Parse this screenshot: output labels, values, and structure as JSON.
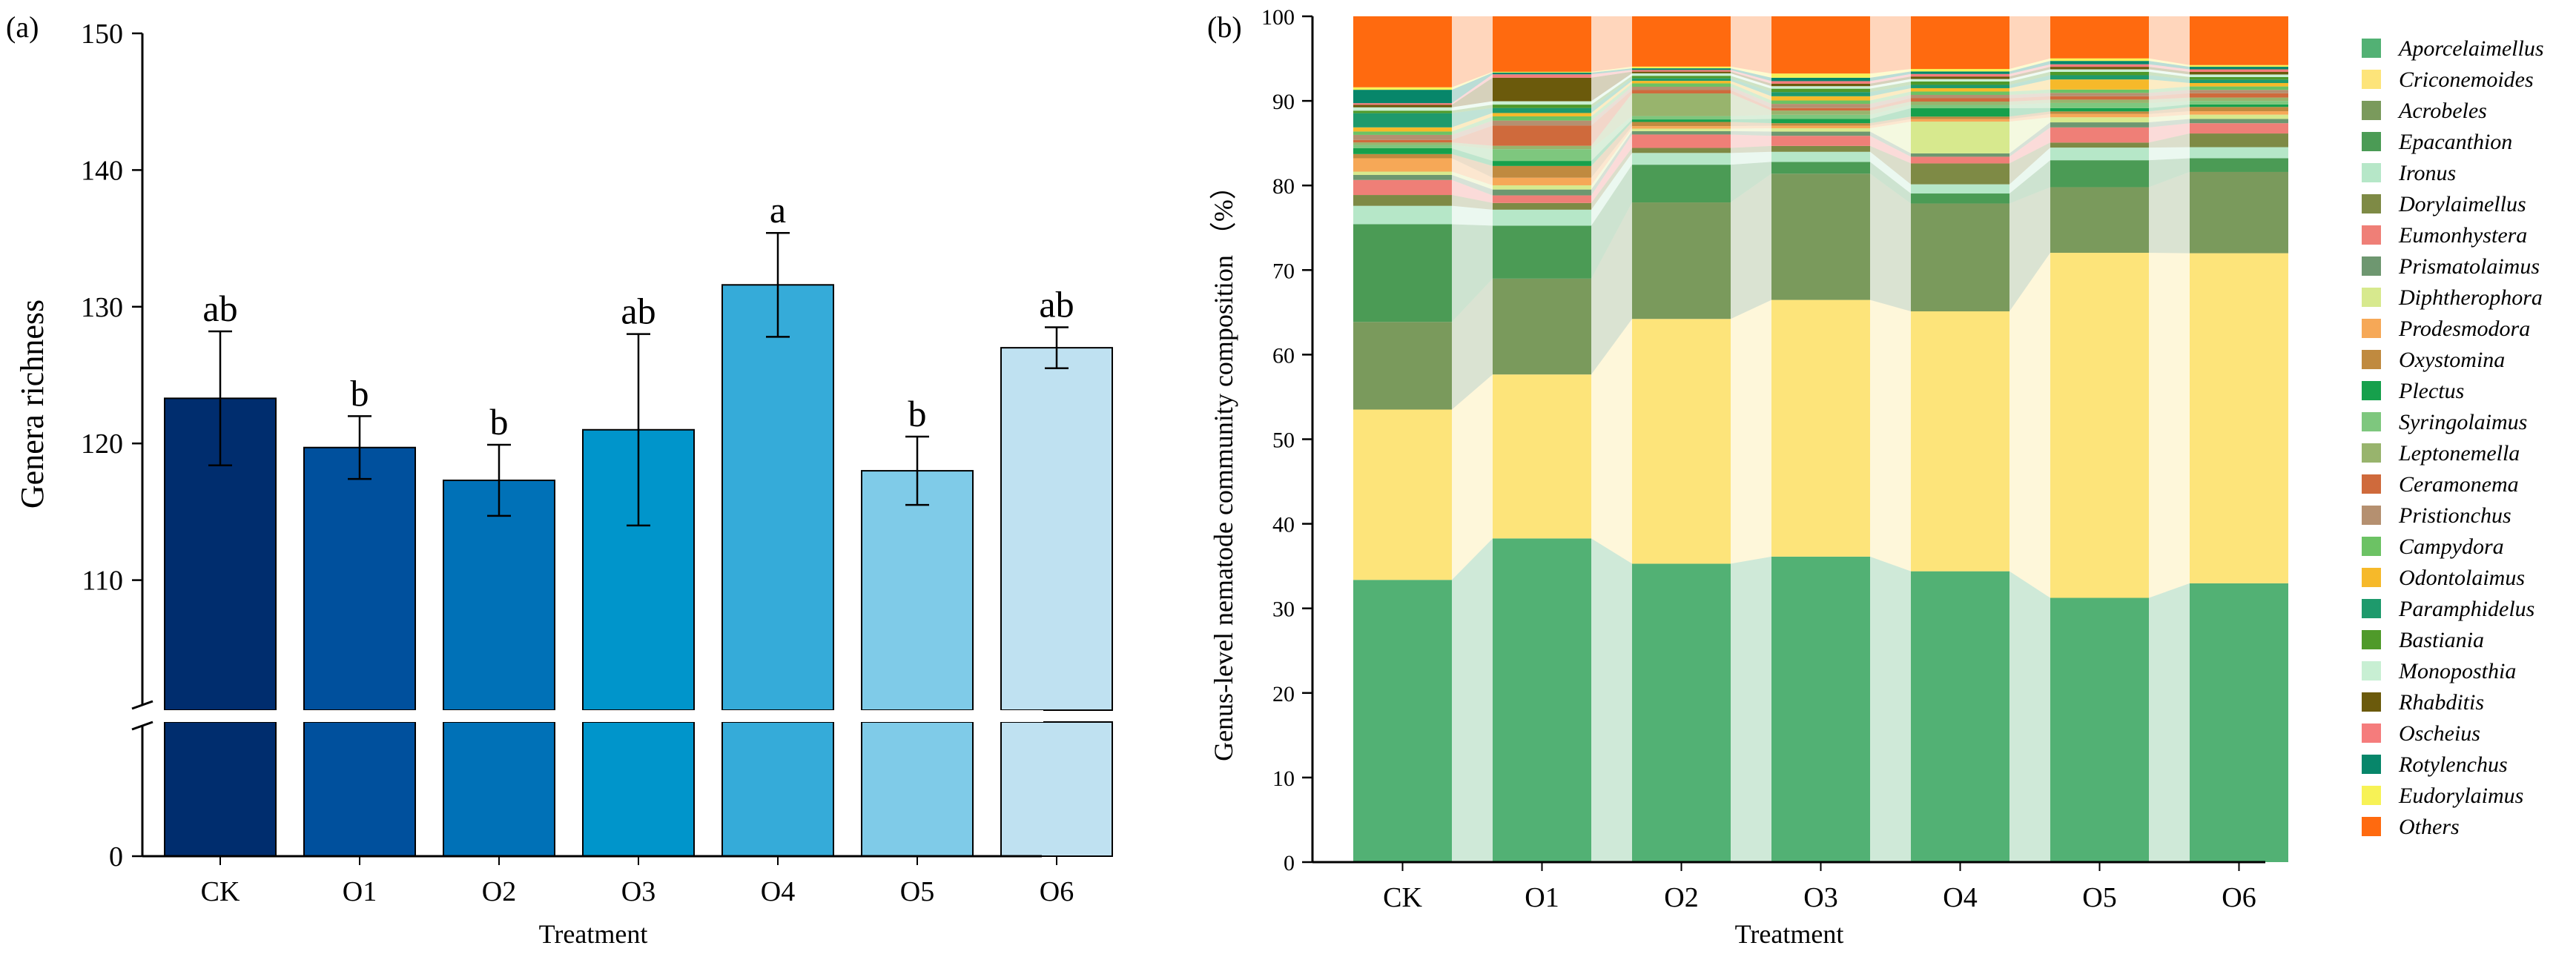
{
  "chart_data": [
    {
      "panel": "(a)",
      "type": "bar",
      "title": "",
      "xlabel": "Treatment",
      "ylabel": "Genera richness",
      "categories": [
        "CK",
        "O1",
        "O2",
        "O3",
        "O4",
        "O5",
        "O6"
      ],
      "values": [
        123.3,
        119.7,
        117.3,
        121.0,
        131.6,
        118.0,
        127.0
      ],
      "errors": [
        4.9,
        2.3,
        2.6,
        7.0,
        3.8,
        2.5,
        1.5
      ],
      "significance": [
        "ab",
        "b",
        "b",
        "ab",
        "a",
        "b",
        "ab"
      ],
      "bar_colors": [
        "#002d6e",
        "#00509d",
        "#0071b7",
        "#0095cb",
        "#35abd9",
        "#7fcbe8",
        "#bfe1f1"
      ],
      "y_axis_break": true,
      "ylim": [
        0,
        150
      ],
      "yticks": [
        "0",
        "110",
        "120",
        "130",
        "140",
        "150"
      ],
      "grid": false
    },
    {
      "panel": "(b)",
      "type": "stacked-bar",
      "title": "",
      "xlabel": "Treatment",
      "ylabel": "Genus-level nematode community composition （%）",
      "categories": [
        "CK",
        "O1",
        "O2",
        "O3",
        "O4",
        "O5",
        "O6"
      ],
      "ylim": [
        0,
        100
      ],
      "yticks": [
        "0",
        "10",
        "20",
        "30",
        "40",
        "50",
        "60",
        "70",
        "80",
        "90",
        "100"
      ],
      "legend_position": "right",
      "grid": false,
      "series": [
        {
          "name": "Aporcelaimellus",
          "color": "#52b174",
          "values": [
            33.8,
            38.5,
            35.6,
            36.3,
            34.8,
            31.4,
            32.6
          ]
        },
        {
          "name": "Criconemoides",
          "color": "#fde47a",
          "values": [
            20.4,
            19.5,
            29.2,
            30.5,
            31.1,
            41.0,
            38.6
          ]
        },
        {
          "name": "Acrobeles",
          "color": "#7a9a5c",
          "values": [
            10.5,
            11.4,
            13.9,
            15.0,
            12.9,
            7.8,
            9.5
          ]
        },
        {
          "name": "Epacanthion",
          "color": "#4b9b55",
          "values": [
            11.7,
            6.3,
            4.5,
            1.4,
            1.2,
            3.2,
            1.6
          ]
        },
        {
          "name": "Ironus",
          "color": "#b6e7c8",
          "values": [
            2.2,
            1.9,
            1.4,
            1.2,
            1.1,
            1.5,
            1.3
          ]
        },
        {
          "name": "Dorylaimellus",
          "color": "#7e8a45",
          "values": [
            1.3,
            0.8,
            0.6,
            0.7,
            2.5,
            0.6,
            1.6
          ]
        },
        {
          "name": "Eumonhystera",
          "color": "#ef7f77",
          "values": [
            1.8,
            0.9,
            1.6,
            1.2,
            0.8,
            1.8,
            1.2
          ]
        },
        {
          "name": "Prismatolaimus",
          "color": "#6e9770",
          "values": [
            0.6,
            0.7,
            0.4,
            0.5,
            0.4,
            0.6,
            0.5
          ]
        },
        {
          "name": "Diphtherophora",
          "color": "#d7e98e",
          "values": [
            0.4,
            0.5,
            0.3,
            0.4,
            3.8,
            0.6,
            0.5
          ]
        },
        {
          "name": "Prodesmodora",
          "color": "#f6a857",
          "values": [
            1.6,
            0.9,
            0.3,
            0.3,
            0.3,
            0.4,
            0.4
          ]
        },
        {
          "name": "Oxystomina",
          "color": "#c08a3f",
          "values": [
            0.5,
            1.4,
            0.5,
            0.3,
            0.3,
            0.3,
            0.5
          ]
        },
        {
          "name": "Plectus",
          "color": "#16a04c",
          "values": [
            0.7,
            0.6,
            0.3,
            0.5,
            1.0,
            0.4,
            0.3
          ]
        },
        {
          "name": "Syringolaimus",
          "color": "#7ec77e",
          "values": [
            0.4,
            1.4,
            0.4,
            0.5,
            0.4,
            0.6,
            0.4
          ]
        },
        {
          "name": "Leptonemella",
          "color": "#98b46d",
          "values": [
            0.3,
            0.4,
            2.7,
            0.5,
            0.4,
            0.4,
            0.4
          ]
        },
        {
          "name": "Ceramonema",
          "color": "#cf6a3c",
          "values": [
            0.3,
            2.4,
            0.4,
            0.3,
            0.4,
            0.4,
            0.5
          ]
        },
        {
          "name": "Pristionchus",
          "color": "#b59070",
          "values": [
            0.6,
            0.6,
            0.4,
            0.5,
            0.4,
            0.4,
            0.4
          ]
        },
        {
          "name": "Campydora",
          "color": "#6cc264",
          "values": [
            0.4,
            0.5,
            0.4,
            0.4,
            0.4,
            0.4,
            0.4
          ]
        },
        {
          "name": "Odontolaimus",
          "color": "#f6b92a",
          "values": [
            0.5,
            0.4,
            0.3,
            0.5,
            0.4,
            1.2,
            0.4
          ]
        },
        {
          "name": "Paramphidelus",
          "color": "#1e9a6c",
          "values": [
            1.7,
            0.6,
            0.3,
            0.5,
            0.4,
            0.5,
            0.4
          ]
        },
        {
          "name": "Bastiania",
          "color": "#4f9a2a",
          "values": [
            0.3,
            0.4,
            0.3,
            0.4,
            0.4,
            0.4,
            0.3
          ]
        },
        {
          "name": "Monoposthia",
          "color": "#c8efd3",
          "values": [
            0.4,
            0.4,
            0.3,
            0.3,
            0.3,
            0.3,
            0.3
          ]
        },
        {
          "name": "Rhabditis",
          "color": "#6b5a0c",
          "values": [
            0.3,
            2.8,
            0.2,
            0.3,
            0.3,
            0.3,
            0.3
          ]
        },
        {
          "name": "Oscheius",
          "color": "#f57c7c",
          "values": [
            0.2,
            0.4,
            0.2,
            0.3,
            0.3,
            0.3,
            0.3
          ]
        },
        {
          "name": "Rotylenchus",
          "color": "#07866a",
          "values": [
            1.6,
            0.2,
            0.2,
            0.4,
            0.3,
            0.4,
            0.3
          ]
        },
        {
          "name": "Eudorylaimus",
          "color": "#f7f256",
          "values": [
            0.3,
            0.1,
            0.2,
            0.5,
            0.3,
            0.3,
            0.2
          ]
        },
        {
          "name": "Others",
          "color": "#ff6a0f",
          "values": [
            8.5,
            6.6,
            6.0,
            6.8,
            6.3,
            5.0,
            5.7
          ]
        }
      ]
    }
  ]
}
